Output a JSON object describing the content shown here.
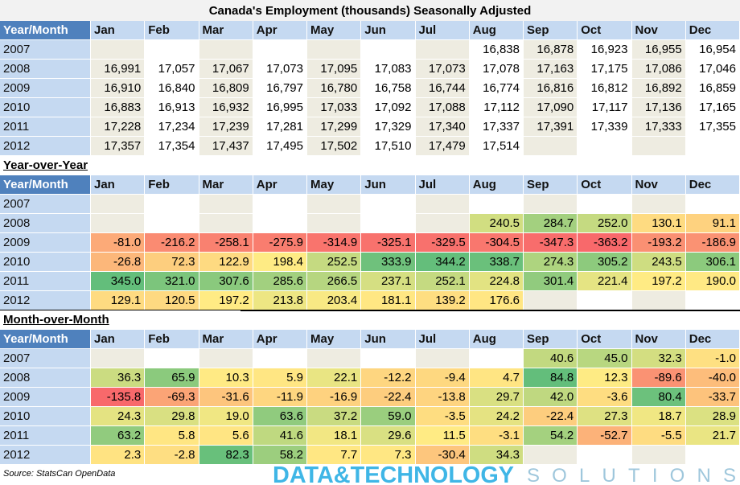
{
  "title": "Canada's Employment (thousands) Seasonally Adjusted",
  "heat_colors": [
    "#f8696b",
    "#ffeb84",
    "#63be7b"
  ],
  "sections": [
    {
      "heatmap": false,
      "header": [
        "Year/Month",
        "Jan",
        "Feb",
        "Mar",
        "Apr",
        "May",
        "Jun",
        "Jul",
        "Aug",
        "Sep",
        "Oct",
        "Nov",
        "Dec"
      ],
      "rows": [
        {
          "year": "2007",
          "cells": [
            null,
            null,
            null,
            null,
            null,
            null,
            null,
            "16,838",
            "16,878",
            "16,923",
            "16,955",
            "16,954"
          ]
        },
        {
          "year": "2008",
          "cells": [
            "16,991",
            "17,057",
            "17,067",
            "17,073",
            "17,095",
            "17,083",
            "17,073",
            "17,078",
            "17,163",
            "17,175",
            "17,086",
            "17,046"
          ]
        },
        {
          "year": "2009",
          "cells": [
            "16,910",
            "16,840",
            "16,809",
            "16,797",
            "16,780",
            "16,758",
            "16,744",
            "16,774",
            "16,816",
            "16,812",
            "16,892",
            "16,859"
          ]
        },
        {
          "year": "2010",
          "cells": [
            "16,883",
            "16,913",
            "16,932",
            "16,995",
            "17,033",
            "17,092",
            "17,088",
            "17,112",
            "17,090",
            "17,117",
            "17,136",
            "17,165"
          ]
        },
        {
          "year": "2011",
          "cells": [
            "17,228",
            "17,234",
            "17,239",
            "17,281",
            "17,299",
            "17,329",
            "17,340",
            "17,337",
            "17,391",
            "17,339",
            "17,333",
            "17,355"
          ]
        },
        {
          "year": "2012",
          "cells": [
            "17,357",
            "17,354",
            "17,437",
            "17,495",
            "17,502",
            "17,510",
            "17,479",
            "17,514",
            null,
            null,
            null,
            null
          ]
        }
      ]
    },
    {
      "label": "Year-over-Year",
      "heatmap": true,
      "header": [
        "Year/Month",
        "Jan",
        "Feb",
        "Mar",
        "Apr",
        "May",
        "Jun",
        "Jul",
        "Aug",
        "Sep",
        "Oct",
        "Nov",
        "Dec"
      ],
      "rows": [
        {
          "year": "2007",
          "cells": [
            null,
            null,
            null,
            null,
            null,
            null,
            null,
            null,
            null,
            null,
            null,
            null
          ]
        },
        {
          "year": "2008",
          "cells": [
            null,
            null,
            null,
            null,
            null,
            null,
            null,
            "240.5",
            "284.7",
            "252.0",
            "130.1",
            "91.1"
          ]
        },
        {
          "year": "2009",
          "cells": [
            "-81.0",
            "-216.2",
            "-258.1",
            "-275.9",
            "-314.9",
            "-325.1",
            "-329.5",
            "-304.5",
            "-347.3",
            "-363.2",
            "-193.2",
            "-186.9"
          ]
        },
        {
          "year": "2010",
          "cells": [
            "-26.8",
            "72.3",
            "122.9",
            "198.4",
            "252.5",
            "333.9",
            "344.2",
            "338.7",
            "274.3",
            "305.2",
            "243.5",
            "306.1"
          ]
        },
        {
          "year": "2011",
          "cells": [
            "345.0",
            "321.0",
            "307.6",
            "285.6",
            "266.5",
            "237.1",
            "252.1",
            "224.8",
            "301.4",
            "221.4",
            "197.2",
            "190.0"
          ]
        },
        {
          "year": "2012",
          "cells": [
            "129.1",
            "120.5",
            "197.2",
            "213.8",
            "203.4",
            "181.1",
            "139.2",
            "176.6",
            null,
            null,
            null,
            null
          ]
        }
      ]
    },
    {
      "label": "Month-over-Month",
      "heatmap": true,
      "header": [
        "Year/Month",
        "Jan",
        "Feb",
        "Mar",
        "Apr",
        "May",
        "Jun",
        "Jul",
        "Aug",
        "Sep",
        "Oct",
        "Nov",
        "Dec"
      ],
      "rows": [
        {
          "year": "2007",
          "cells": [
            null,
            null,
            null,
            null,
            null,
            null,
            null,
            null,
            "40.6",
            "45.0",
            "32.3",
            "-1.0"
          ]
        },
        {
          "year": "2008",
          "cells": [
            "36.3",
            "65.9",
            "10.3",
            "5.9",
            "22.1",
            "-12.2",
            "-9.4",
            "4.7",
            "84.8",
            "12.3",
            "-89.6",
            "-40.0"
          ]
        },
        {
          "year": "2009",
          "cells": [
            "-135.8",
            "-69.3",
            "-31.6",
            "-11.9",
            "-16.9",
            "-22.4",
            "-13.8",
            "29.7",
            "42.0",
            "-3.6",
            "80.4",
            "-33.7"
          ]
        },
        {
          "year": "2010",
          "cells": [
            "24.3",
            "29.8",
            "19.0",
            "63.6",
            "37.2",
            "59.0",
            "-3.5",
            "24.2",
            "-22.4",
            "27.3",
            "18.7",
            "28.9"
          ]
        },
        {
          "year": "2011",
          "cells": [
            "63.2",
            "5.8",
            "5.6",
            "41.6",
            "18.1",
            "29.6",
            "11.5",
            "-3.1",
            "54.2",
            "-52.7",
            "-5.5",
            "21.7"
          ]
        },
        {
          "year": "2012",
          "cells": [
            "2.3",
            "-2.8",
            "82.3",
            "58.2",
            "7.7",
            "7.3",
            "-30.4",
            "34.3",
            null,
            null,
            null,
            null
          ]
        }
      ]
    }
  ],
  "source": "Source: StatsCan OpenData",
  "logo": {
    "brand": "DATA&TECHNOLOGY",
    "tagline": "SOLUTIONS"
  }
}
